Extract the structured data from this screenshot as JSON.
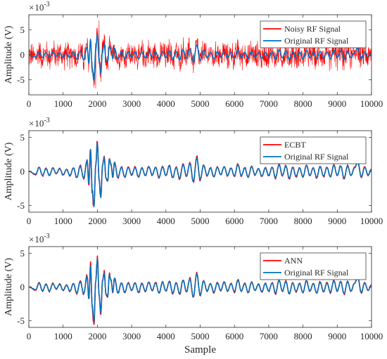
{
  "colors": {
    "axis": "#262626",
    "legend_border": "#262626",
    "background": "#ffffff"
  },
  "chart_data": [
    {
      "type": "line",
      "ylabel": "Amplitude (V)",
      "xlabel": "",
      "xlim": [
        0,
        10000
      ],
      "ylim": [
        -0.008,
        0.008
      ],
      "x_ticks": [
        "0",
        "1000",
        "2000",
        "3000",
        "4000",
        "5000",
        "6000",
        "7000",
        "8000",
        "9000",
        "10000"
      ],
      "y_ticks": [
        "-5",
        "0",
        "5"
      ],
      "y_exponent": "10",
      "y_exponent_power": "-3",
      "legend": {
        "position": "top-right"
      },
      "series": [
        {
          "name": "Noisy RF Signal",
          "color": "#ff0000",
          "kind": "noisy",
          "noise_amplitude": 0.0026,
          "samples": 10000,
          "peaks": {
            "max": 0.0068,
            "min": -0.0067
          }
        },
        {
          "name": "Original RF Signal",
          "color": "#0072bd",
          "kind": "original"
        }
      ]
    },
    {
      "type": "line",
      "ylabel": "Amplitude (V)",
      "xlabel": "",
      "xlim": [
        0,
        10000
      ],
      "ylim": [
        -0.006,
        0.006
      ],
      "x_ticks": [
        "0",
        "1000",
        "2000",
        "3000",
        "4000",
        "5000",
        "6000",
        "7000",
        "8000",
        "9000",
        "10000"
      ],
      "y_ticks": [
        "-5",
        "0",
        "5"
      ],
      "y_exponent": "10",
      "y_exponent_power": "-3",
      "legend": {
        "position": "top-right"
      },
      "series": [
        {
          "name": "ECBT",
          "color": "#ff0000",
          "kind": "denoised"
        },
        {
          "name": "Original RF Signal",
          "color": "#0072bd",
          "kind": "original"
        }
      ]
    },
    {
      "type": "line",
      "ylabel": "Amplitude (V)",
      "xlabel": "Sample",
      "xlim": [
        0,
        10000
      ],
      "ylim": [
        -0.006,
        0.006
      ],
      "x_ticks": [
        "0",
        "1000",
        "2000",
        "3000",
        "4000",
        "5000",
        "6000",
        "7000",
        "8000",
        "9000",
        "10000"
      ],
      "y_ticks": [
        "-5",
        "0",
        "5"
      ],
      "y_exponent": "10",
      "y_exponent_power": "-3",
      "legend": {
        "position": "top-right"
      },
      "series": [
        {
          "name": "ANN",
          "color": "#ff0000",
          "kind": "denoised"
        },
        {
          "name": "Original RF Signal",
          "color": "#0072bd",
          "kind": "original"
        }
      ]
    }
  ],
  "original_signal": {
    "x": [
      0,
      200,
      300,
      400,
      500,
      600,
      700,
      800,
      900,
      1000,
      1100,
      1200,
      1300,
      1400,
      1500,
      1600,
      1700,
      1750,
      1800,
      1850,
      1900,
      1950,
      2000,
      2050,
      2100,
      2150,
      2200,
      2250,
      2300,
      2350,
      2400,
      2450,
      2500,
      2600,
      2700,
      2800,
      2900,
      3000,
      3100,
      3200,
      3300,
      3400,
      3500,
      3600,
      3700,
      3800,
      3900,
      4000,
      4100,
      4200,
      4300,
      4400,
      4500,
      4600,
      4700,
      4800,
      4900,
      5000,
      5100,
      5200,
      5300,
      5400,
      5500,
      5600,
      5700,
      5800,
      5900,
      6000,
      6100,
      6200,
      6300,
      6400,
      6500,
      6600,
      6700,
      6800,
      6900,
      7000,
      7100,
      7200,
      7300,
      7400,
      7500,
      7600,
      7700,
      7800,
      7900,
      8000,
      8100,
      8200,
      8300,
      8400,
      8500,
      8600,
      8700,
      8800,
      8900,
      9000,
      9100,
      9200,
      9300,
      9400,
      9500,
      9600,
      9700,
      9800,
      9900,
      10000
    ],
    "y": [
      0.0,
      -0.0004,
      0.0006,
      -0.0006,
      0.0004,
      -0.0006,
      0.0005,
      -0.0003,
      0.0004,
      -0.0005,
      0.0003,
      -0.0006,
      0.0005,
      -0.0009,
      0.0008,
      -0.001,
      0.0016,
      -0.0018,
      0.0031,
      -0.0028,
      -0.0052,
      0.0008,
      0.0042,
      -0.0012,
      -0.0038,
      0.0009,
      0.0021,
      -0.001,
      -0.0014,
      0.0018,
      0.0009,
      -0.0008,
      0.0013,
      -0.0009,
      0.0006,
      -0.0008,
      0.0006,
      -0.0005,
      0.0006,
      -0.0008,
      0.0005,
      -0.0006,
      0.0007,
      -0.0005,
      0.0006,
      -0.0009,
      0.0007,
      -0.0006,
      0.0008,
      -0.0009,
      0.0006,
      -0.001,
      0.001,
      -0.0007,
      0.0012,
      -0.0015,
      0.002,
      -0.0012,
      0.0009,
      -0.0006,
      0.0005,
      -0.0008,
      0.0006,
      -0.0005,
      0.0007,
      -0.0006,
      0.0005,
      -0.0007,
      0.001,
      -0.0006,
      0.0005,
      -0.0008,
      0.0007,
      -0.0005,
      0.0004,
      -0.0007,
      0.0005,
      -0.0006,
      0.0006,
      -0.0009,
      0.001,
      -0.0006,
      0.0008,
      -0.001,
      0.0006,
      -0.0007,
      0.0005,
      -0.0008,
      0.0009,
      -0.0006,
      0.0005,
      -0.0009,
      0.0007,
      -0.0007,
      0.0006,
      -0.0008,
      0.0009,
      -0.0006,
      0.0008,
      -0.001,
      0.0008,
      -0.0006,
      0.0005,
      0.0014,
      -0.0008,
      0.0006,
      -0.0005,
      0.0003
    ]
  }
}
